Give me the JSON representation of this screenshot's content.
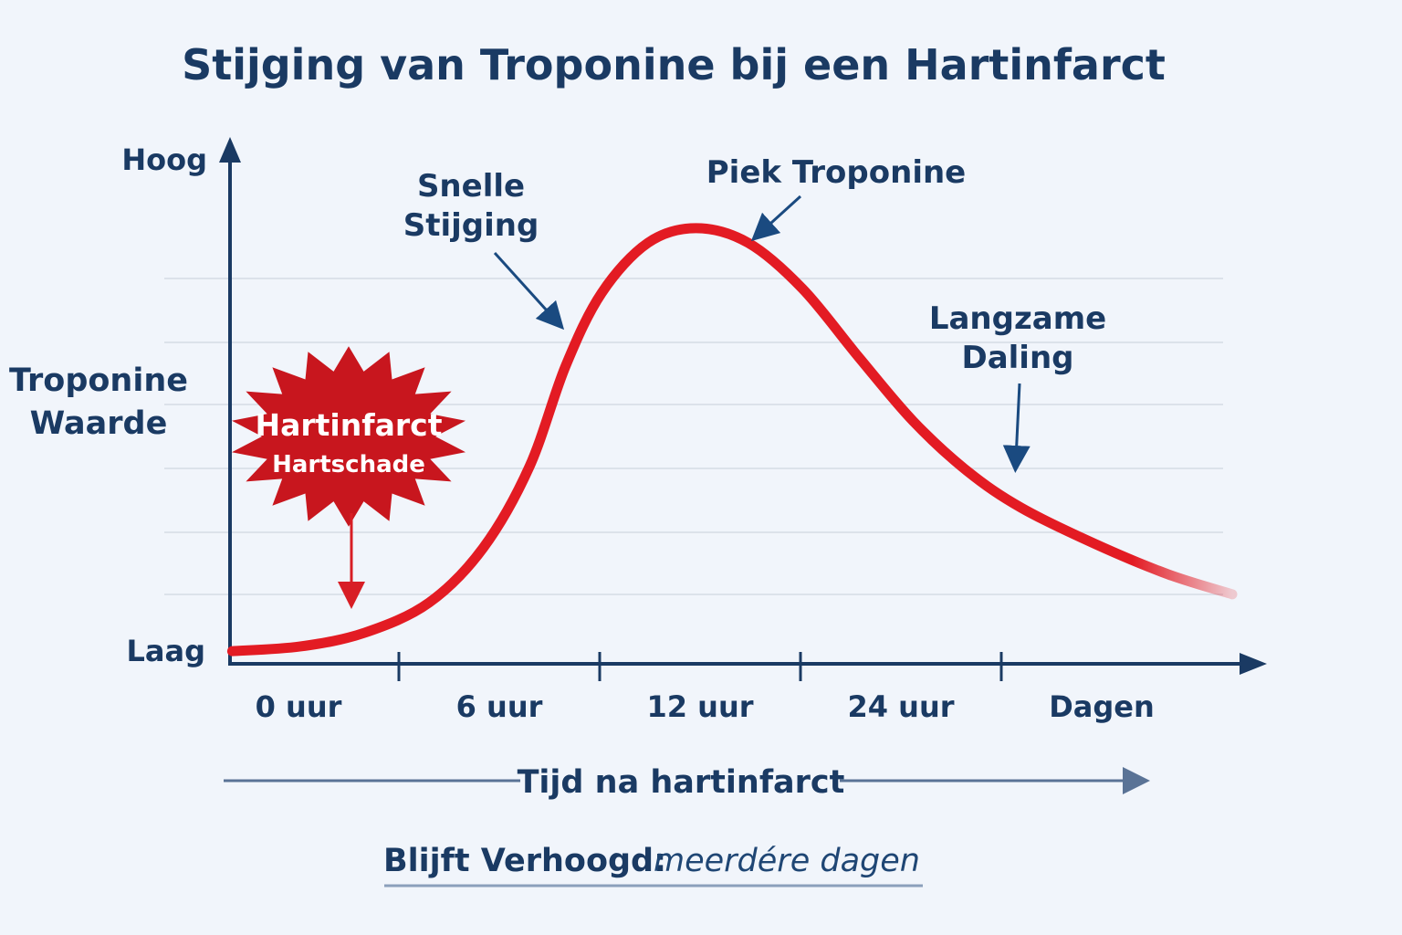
{
  "chart_data": {
    "type": "line",
    "title": "Stijging van Troponine bij een Hartinfarct",
    "ylabel": [
      "Troponine",
      "Waarde"
    ],
    "y_tick_labels": {
      "top": "Hoog",
      "bottom": "Laag"
    },
    "xlabel": "Tijd na hartinfarct",
    "categories": [
      "0 uur",
      "6 uur",
      "12 uur",
      "24 uur",
      "Dagen"
    ],
    "xlim": [
      0,
      5
    ],
    "ylim": [
      0,
      100
    ],
    "grid": true,
    "series": [
      {
        "color": "#e31b23",
        "x": [
          0.17,
          0.51,
          0.83,
          1.15,
          1.42,
          1.65,
          1.83,
          2.01,
          2.24,
          2.48,
          2.74,
          3.01,
          3.29,
          3.56,
          3.83,
          4.1,
          4.47,
          4.83,
          5.15
        ],
        "y": [
          2.4,
          3.3,
          5.9,
          11.6,
          22.0,
          37.4,
          56.5,
          70.4,
          79.9,
          82.7,
          79.9,
          71.2,
          58.2,
          46.1,
          36.6,
          29.6,
          22.7,
          17.0,
          13.2
        ]
      }
    ],
    "annotations": [
      {
        "lines": [
          "Snelle",
          "Stijging"
        ]
      },
      {
        "lines": [
          "Piek Troponine"
        ]
      },
      {
        "lines": [
          "Langzame",
          "Daling"
        ]
      },
      {
        "lines": [
          "Hartinfarct",
          "Hartschade"
        ],
        "color": "#c8161e"
      }
    ],
    "footer": {
      "label": "Blijft Verhoogd:",
      "value": "meerdére dagen"
    }
  },
  "colors": {
    "axis": "#1a3a63",
    "curve": "#e31b23",
    "burst": "#c8161e",
    "grid": "#d5dbe5"
  }
}
